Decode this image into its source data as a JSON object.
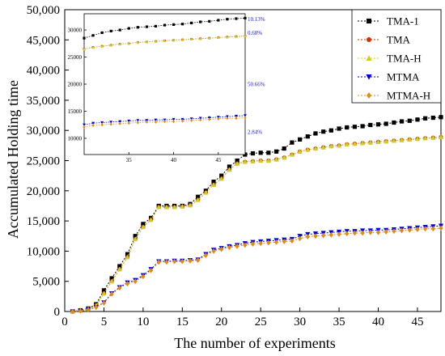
{
  "chart_data": {
    "type": "line",
    "title": "",
    "xlabel": "The number of experiments",
    "ylabel": "Accumulated Holding time",
    "xlim": [
      0,
      48
    ],
    "ylim": [
      0,
      50000
    ],
    "x_ticks": [
      0,
      5,
      10,
      15,
      20,
      25,
      30,
      35,
      40,
      45
    ],
    "x_tick_labels": [
      "0",
      "5",
      "10",
      "15",
      "20",
      "25",
      "30",
      "35",
      "40",
      "45"
    ],
    "y_ticks": [
      0,
      5000,
      10000,
      15000,
      20000,
      25000,
      30000,
      35000,
      40000,
      45000,
      50000
    ],
    "y_tick_labels": [
      "0",
      "5,000",
      "10,000",
      "15,000",
      "20,000",
      "25,000",
      "30,000",
      "35,000",
      "40,000",
      "45,000",
      "50,000"
    ],
    "legend_position": "top-right",
    "x": [
      1,
      2,
      3,
      4,
      5,
      6,
      7,
      8,
      9,
      10,
      11,
      12,
      13,
      14,
      15,
      16,
      17,
      18,
      19,
      20,
      21,
      22,
      23,
      24,
      25,
      26,
      27,
      28,
      29,
      30,
      31,
      32,
      33,
      34,
      35,
      36,
      37,
      38,
      39,
      40,
      41,
      42,
      43,
      44,
      45,
      46,
      47,
      48
    ],
    "series": [
      {
        "name": "TMA-1",
        "color": "#000000",
        "marker": "square",
        "values": [
          0,
          200,
          500,
          1200,
          3500,
          5500,
          7500,
          9500,
          12500,
          14500,
          15500,
          17500,
          17500,
          17500,
          17500,
          17800,
          19000,
          20000,
          21500,
          22500,
          24000,
          25000,
          26000,
          26200,
          26300,
          26300,
          26500,
          27000,
          28000,
          28500,
          29000,
          29500,
          29800,
          30000,
          30300,
          30500,
          30600,
          30700,
          30900,
          31000,
          31100,
          31300,
          31500,
          31600,
          31800,
          32000,
          32100,
          32200
        ]
      },
      {
        "name": "TMA",
        "color": "#cc3300",
        "marker": "circle",
        "values": [
          0,
          150,
          400,
          1000,
          3000,
          5000,
          7000,
          9000,
          12000,
          14000,
          15200,
          17300,
          17300,
          17300,
          17400,
          17600,
          18500,
          19700,
          21000,
          22000,
          23500,
          24500,
          24800,
          24900,
          25000,
          25000,
          25200,
          25500,
          26000,
          26500,
          26800,
          27000,
          27200,
          27400,
          27500,
          27700,
          27800,
          27900,
          28000,
          28100,
          28200,
          28300,
          28400,
          28500,
          28600,
          28700,
          28800,
          28900
        ]
      },
      {
        "name": "TMA-H",
        "color": "#cccc33",
        "marker": "triangle-up",
        "values": [
          0,
          150,
          400,
          1000,
          3000,
          5000,
          7000,
          9000,
          12000,
          14000,
          15200,
          17300,
          17300,
          17300,
          17400,
          17600,
          18500,
          19700,
          21000,
          22000,
          23500,
          24500,
          24800,
          24900,
          25000,
          25000,
          25200,
          25500,
          26000,
          26500,
          26800,
          27000,
          27200,
          27400,
          27500,
          27700,
          27800,
          27900,
          28000,
          28100,
          28200,
          28300,
          28400,
          28500,
          28600,
          28700,
          28800,
          28900
        ]
      },
      {
        "name": "MTMA",
        "color": "#0000cc",
        "marker": "triangle-down",
        "values": [
          0,
          100,
          300,
          700,
          1500,
          3000,
          4000,
          4800,
          5200,
          6000,
          7000,
          8300,
          8300,
          8400,
          8400,
          8500,
          8600,
          9500,
          10200,
          10500,
          10800,
          11000,
          11300,
          11500,
          11600,
          11700,
          11800,
          11900,
          12000,
          12500,
          12800,
          12900,
          13000,
          13100,
          13200,
          13300,
          13300,
          13400,
          13400,
          13500,
          13500,
          13600,
          13700,
          13800,
          13900,
          14000,
          14100,
          14200
        ]
      },
      {
        "name": "MTMA-H",
        "color": "#e08a1e",
        "marker": "diamond",
        "values": [
          0,
          100,
          300,
          700,
          1400,
          2900,
          3900,
          4600,
          5000,
          5800,
          6800,
          8200,
          8200,
          8300,
          8300,
          8400,
          8500,
          9300,
          10000,
          10300,
          10600,
          10800,
          11000,
          11200,
          11300,
          11400,
          11500,
          11600,
          11700,
          12100,
          12400,
          12500,
          12600,
          12700,
          12800,
          12900,
          13000,
          13000,
          13100,
          13100,
          13200,
          13300,
          13400,
          13500,
          13600,
          13700,
          13700,
          13800
        ]
      }
    ],
    "inset": {
      "x_tick_labels": [
        "35",
        "40",
        "45"
      ],
      "y_tick_labels": [
        "10000",
        "15000",
        "20000",
        "25000",
        "30000"
      ],
      "annotations": [
        "10.13%",
        "0.68%",
        "50.66%",
        "2.84%"
      ]
    }
  }
}
